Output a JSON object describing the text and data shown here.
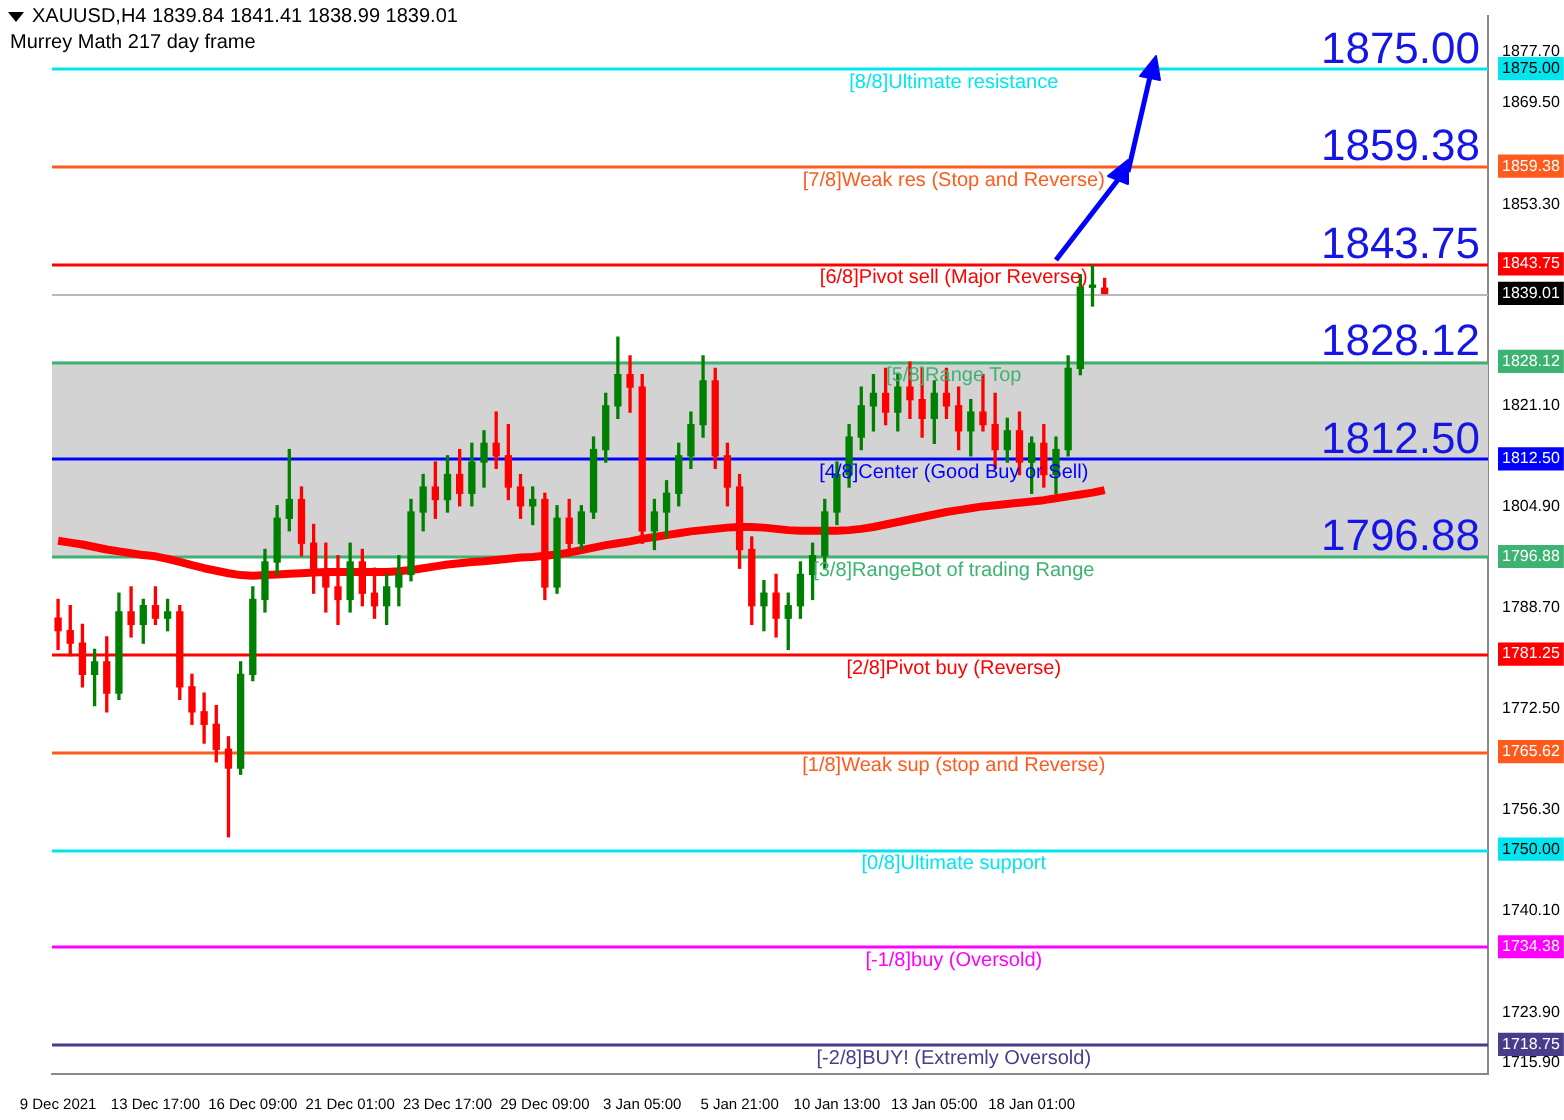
{
  "chart_data": {
    "type": "candlestick",
    "title": "XAUUSD,H4 1839.84 1841.41 1838.99 1839.01",
    "subtitle": "Murrey Math 217 day frame",
    "categories": [
      "9 Dec 2021",
      null,
      null,
      null,
      null,
      null,
      null,
      null,
      "13 Dec 17:00",
      null,
      null,
      null,
      null,
      null,
      null,
      null,
      "16 Dec 09:00",
      null,
      null,
      null,
      null,
      null,
      null,
      null,
      "21 Dec 01:00",
      null,
      null,
      null,
      null,
      null,
      null,
      null,
      "23 Dec 17:00",
      null,
      null,
      null,
      null,
      null,
      null,
      null,
      "29 Dec 09:00",
      null,
      null,
      null,
      null,
      null,
      null,
      null,
      "3 Jan 05:00",
      null,
      null,
      null,
      null,
      null,
      null,
      null,
      "5 Jan 21:00",
      null,
      null,
      null,
      null,
      null,
      null,
      null,
      "10 Jan 13:00",
      null,
      null,
      null,
      null,
      null,
      null,
      null,
      "13 Jan 05:00",
      null,
      null,
      null,
      null,
      null,
      null,
      null,
      "18 Jan 01:00",
      null,
      null,
      null,
      null,
      null,
      null
    ],
    "ohlc": [
      [
        1787,
        1790,
        1782,
        1785
      ],
      [
        1785,
        1789,
        1781,
        1783
      ],
      [
        1783,
        1786,
        1776,
        1778
      ],
      [
        1778,
        1782,
        1773,
        1780
      ],
      [
        1780,
        1784,
        1772,
        1775
      ],
      [
        1775,
        1791,
        1774,
        1788
      ],
      [
        1788,
        1792,
        1784,
        1786
      ],
      [
        1786,
        1790,
        1783,
        1789
      ],
      [
        1789,
        1792,
        1786,
        1787
      ],
      [
        1787,
        1790,
        1785,
        1788
      ],
      [
        1788,
        1789,
        1774,
        1776
      ],
      [
        1776,
        1778,
        1770,
        1772
      ],
      [
        1772,
        1775,
        1767,
        1770
      ],
      [
        1770,
        1773,
        1764,
        1766
      ],
      [
        1766,
        1768,
        1752,
        1763
      ],
      [
        1763,
        1780,
        1762,
        1778
      ],
      [
        1778,
        1792,
        1777,
        1790
      ],
      [
        1790,
        1798,
        1788,
        1796
      ],
      [
        1796,
        1805,
        1794,
        1803
      ],
      [
        1803,
        1814,
        1801,
        1806
      ],
      [
        1806,
        1808,
        1797,
        1799
      ],
      [
        1799,
        1802,
        1791,
        1794
      ],
      [
        1794,
        1799,
        1788,
        1792
      ],
      [
        1792,
        1797,
        1786,
        1790
      ],
      [
        1790,
        1799,
        1788,
        1796
      ],
      [
        1796,
        1798,
        1789,
        1791
      ],
      [
        1791,
        1795,
        1787,
        1789
      ],
      [
        1789,
        1794,
        1786,
        1792
      ],
      [
        1792,
        1797,
        1789,
        1794
      ],
      [
        1794,
        1806,
        1793,
        1804
      ],
      [
        1804,
        1810,
        1801,
        1808
      ],
      [
        1808,
        1812,
        1803,
        1806
      ],
      [
        1806,
        1813,
        1804,
        1810
      ],
      [
        1810,
        1814,
        1805,
        1807
      ],
      [
        1807,
        1815,
        1805,
        1812
      ],
      [
        1812,
        1817,
        1808,
        1815
      ],
      [
        1815,
        1820,
        1811,
        1813
      ],
      [
        1813,
        1818,
        1806,
        1808
      ],
      [
        1808,
        1810,
        1803,
        1805
      ],
      [
        1805,
        1808,
        1802,
        1806
      ],
      [
        1806,
        1807,
        1790,
        1792
      ],
      [
        1792,
        1805,
        1791,
        1803
      ],
      [
        1803,
        1806,
        1797,
        1799
      ],
      [
        1799,
        1805,
        1798,
        1804
      ],
      [
        1804,
        1816,
        1803,
        1814
      ],
      [
        1814,
        1823,
        1812,
        1821
      ],
      [
        1821,
        1832,
        1819,
        1826
      ],
      [
        1826,
        1829,
        1820,
        1824
      ],
      [
        1824,
        1826,
        1799,
        1801
      ],
      [
        1801,
        1806,
        1798,
        1804
      ],
      [
        1804,
        1809,
        1800,
        1807
      ],
      [
        1807,
        1815,
        1805,
        1813
      ],
      [
        1813,
        1820,
        1811,
        1818
      ],
      [
        1818,
        1829,
        1816,
        1825
      ],
      [
        1825,
        1827,
        1811,
        1813
      ],
      [
        1813,
        1815,
        1805,
        1808
      ],
      [
        1808,
        1810,
        1795,
        1798
      ],
      [
        1798,
        1800,
        1786,
        1789
      ],
      [
        1789,
        1793,
        1785,
        1791
      ],
      [
        1791,
        1794,
        1784,
        1787
      ],
      [
        1787,
        1791,
        1782,
        1789
      ],
      [
        1789,
        1796,
        1787,
        1794
      ],
      [
        1794,
        1799,
        1790,
        1797
      ],
      [
        1797,
        1806,
        1795,
        1804
      ],
      [
        1804,
        1812,
        1802,
        1810
      ],
      [
        1810,
        1818,
        1808,
        1816
      ],
      [
        1816,
        1824,
        1814,
        1821
      ],
      [
        1821,
        1826,
        1817,
        1823
      ],
      [
        1823,
        1827,
        1818,
        1820
      ],
      [
        1820,
        1826,
        1817,
        1824
      ],
      [
        1824,
        1828,
        1819,
        1822
      ],
      [
        1822,
        1827,
        1816,
        1819
      ],
      [
        1819,
        1825,
        1815,
        1823
      ],
      [
        1823,
        1827,
        1819,
        1821
      ],
      [
        1821,
        1824,
        1814,
        1817
      ],
      [
        1817,
        1822,
        1813,
        1820
      ],
      [
        1820,
        1826,
        1817,
        1818
      ],
      [
        1818,
        1823,
        1811,
        1814
      ],
      [
        1814,
        1819,
        1812,
        1817
      ],
      [
        1817,
        1820,
        1810,
        1812
      ],
      [
        1812,
        1816,
        1807,
        1815
      ],
      [
        1815,
        1818,
        1808,
        1810
      ],
      [
        1810,
        1816,
        1807,
        1814
      ],
      [
        1814,
        1829,
        1813,
        1827
      ],
      [
        1827,
        1842,
        1826,
        1840
      ],
      [
        1840,
        1843.5,
        1837,
        1840
      ],
      [
        1839.84,
        1841.41,
        1838.99,
        1839.01
      ]
    ],
    "colors": [
      "#ff0000",
      "#ff0000",
      "#ff0000",
      "#008000",
      "#ff0000",
      "#008000",
      "#ff0000",
      "#008000",
      "#ff0000",
      "#008000",
      "#ff0000",
      "#ff0000",
      "#ff0000",
      "#ff0000",
      "#ff0000",
      "#008000",
      "#008000",
      "#008000",
      "#008000",
      "#008000",
      "#ff0000",
      "#ff0000",
      "#ff0000",
      "#ff0000",
      "#008000",
      "#ff0000",
      "#ff0000",
      "#008000",
      "#008000",
      "#008000",
      "#008000",
      "#ff0000",
      "#008000",
      "#ff0000",
      "#008000",
      "#008000",
      "#ff0000",
      "#ff0000",
      "#ff0000",
      "#008000",
      "#ff0000",
      "#008000",
      "#ff0000",
      "#008000",
      "#008000",
      "#008000",
      "#008000",
      "#ff0000",
      "#ff0000",
      "#008000",
      "#008000",
      "#008000",
      "#008000",
      "#008000",
      "#ff0000",
      "#ff0000",
      "#ff0000",
      "#ff0000",
      "#008000",
      "#ff0000",
      "#008000",
      "#008000",
      "#008000",
      "#008000",
      "#008000",
      "#008000",
      "#008000",
      "#008000",
      "#ff0000",
      "#008000",
      "#ff0000",
      "#ff0000",
      "#008000",
      "#ff0000",
      "#ff0000",
      "#008000",
      "#ff0000",
      "#ff0000",
      "#008000",
      "#ff0000",
      "#008000",
      "#ff0000",
      "#008000",
      "#008000",
      "#008000",
      "#008000",
      "#ff0000"
    ],
    "series": [
      {
        "type": "line",
        "color": "#ff0000",
        "values": [
          1799.4,
          1799.1,
          1798.8,
          1798.4,
          1798,
          1797.7,
          1797.4,
          1797.1,
          1796.9,
          1796.5,
          1796,
          1795.5,
          1795,
          1794.6,
          1794.2,
          1793.9,
          1793.8,
          1793.9,
          1794,
          1794.1,
          1794.2,
          1794.3,
          1794.4,
          1794.4,
          1794.4,
          1794.4,
          1794.4,
          1794.4,
          1794.5,
          1794.7,
          1795,
          1795.3,
          1795.6,
          1795.8,
          1796,
          1796.1,
          1796.3,
          1796.5,
          1796.7,
          1796.8,
          1797,
          1797.2,
          1797.5,
          1797.9,
          1798.3,
          1798.7,
          1799,
          1799.3,
          1799.7,
          1800,
          1800.3,
          1800.6,
          1800.9,
          1801.1,
          1801.3,
          1801.5,
          1801.6,
          1801.6,
          1801.5,
          1801.3,
          1801.1,
          1801,
          1801,
          1801,
          1801,
          1801.1,
          1801.3,
          1801.6,
          1802,
          1802.4,
          1802.8,
          1803.2,
          1803.6,
          1804,
          1804.3,
          1804.6,
          1804.9,
          1805.1,
          1805.3,
          1805.5,
          1805.7,
          1805.9,
          1806.2,
          1806.5,
          1806.8,
          1807.1,
          1807.5
        ]
      }
    ],
    "ylim": [
      1714,
      1883.5
    ],
    "yticks": [
      {
        "value": 1877.7,
        "label": "1877.70"
      },
      {
        "value": 1875,
        "label": "1875.00"
      },
      {
        "value": 1869.5,
        "label": "1869.50"
      },
      {
        "value": 1859.38,
        "label": "1859.38"
      },
      {
        "value": 1853.3,
        "label": "1853.30"
      },
      {
        "value": 1843.75,
        "label": "1843.75"
      },
      {
        "value": 1839.01,
        "label": "1839.01"
      },
      {
        "value": 1828.12,
        "label": "1828.12"
      },
      {
        "value": 1821.1,
        "label": "1821.10"
      },
      {
        "value": 1812.5,
        "label": "1812.50"
      },
      {
        "value": 1804.9,
        "label": "1804.90"
      },
      {
        "value": 1796.88,
        "label": "1796.88"
      },
      {
        "value": 1788.7,
        "label": "1788.70"
      },
      {
        "value": 1781.25,
        "label": "1781.25"
      },
      {
        "value": 1772.5,
        "label": "1772.50"
      },
      {
        "value": 1765.62,
        "label": "1765.62"
      },
      {
        "value": 1756.3,
        "label": "1756.30"
      },
      {
        "value": 1750,
        "label": "1750.00"
      },
      {
        "value": 1740.1,
        "label": "1740.10"
      },
      {
        "value": 1734.38,
        "label": "1734.38"
      },
      {
        "value": 1723.9,
        "label": "1723.90"
      },
      {
        "value": 1718.75,
        "label": "1718.75"
      },
      {
        "value": 1715.9,
        "label": "1715.90"
      }
    ],
    "bands": [
      {
        "axis": "y",
        "from": 1796.88,
        "to": 1828.12,
        "color": "#d3d3d3"
      }
    ],
    "ref_lines": [
      {
        "axis": "y",
        "value": 1875,
        "label": "[8/8]Ultimate resistance",
        "color": "#00e5ee"
      },
      {
        "axis": "y",
        "value": 1859.38,
        "label": "[7/8]Weak res (Stop and Reverse)",
        "color": "#ff5a1e"
      },
      {
        "axis": "y",
        "value": 1843.75,
        "label": "[6/8]Pivot sell (Major Reverse)",
        "color": "#ff0000"
      },
      {
        "axis": "y",
        "value": 1839.01,
        "color": "#b8b8b8"
      },
      {
        "axis": "y",
        "value": 1828.12,
        "label": "[5/8]Range Top",
        "color": "#3cb371"
      },
      {
        "axis": "y",
        "value": 1812.5,
        "label": "[4/8]Center (Good Buy or Sell)",
        "color": "#0000ff"
      },
      {
        "axis": "y",
        "value": 1796.88,
        "label": "[3/8]RangeBot of trading Range",
        "color": "#3cb371"
      },
      {
        "axis": "y",
        "value": 1781.25,
        "label": "[2/8]Pivot buy (Reverse)",
        "color": "#ff0000"
      },
      {
        "axis": "y",
        "value": 1765.62,
        "label": "[1/8]Weak sup (stop and Reverse)",
        "color": "#ff5a1e"
      },
      {
        "axis": "y",
        "value": 1750,
        "label": "[0/8]Ultimate support",
        "color": "#00e5ee"
      },
      {
        "axis": "y",
        "value": 1734.38,
        "label": "[-1/8]buy (Oversold)",
        "color": "#ff00ff"
      },
      {
        "axis": "y",
        "value": 1718.75,
        "label": "[-2/8]BUY! (Extremly Oversold)",
        "color": "#483d8b"
      }
    ],
    "annotations": [
      {
        "text": "1875.00",
        "y": 1875
      },
      {
        "text": "1859.38",
        "y": 1859.38
      },
      {
        "text": "1843.75",
        "y": 1843.75
      },
      {
        "text": "1828.12",
        "y": 1828.12
      },
      {
        "text": "1812.50",
        "y": 1812.5
      },
      {
        "text": "1796.88",
        "y": 1796.88
      }
    ],
    "grid": false,
    "legend": false,
    "marker": "none"
  }
}
